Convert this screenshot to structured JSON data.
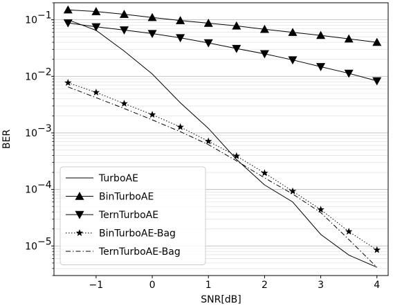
{
  "chart_data": {
    "type": "line",
    "xlabel": "SNR[dB]",
    "ylabel": "BER",
    "xlim": [
      -1.75,
      4.2
    ],
    "ylim": [
      3e-06,
      0.2
    ],
    "yscale": "log",
    "grid": "horizontal (major and minor)",
    "legend_position": "lower-left",
    "x_ticks": [
      -1,
      0,
      1,
      2,
      3,
      4
    ],
    "x_tick_labels": [
      "−1",
      "0",
      "1",
      "2",
      "3",
      "4"
    ],
    "y_ticks": [
      1e-05,
      0.0001,
      0.001,
      0.01,
      0.1
    ],
    "y_tick_labels": [
      {
        "base": "10",
        "exp": "−5"
      },
      {
        "base": "10",
        "exp": "−4"
      },
      {
        "base": "10",
        "exp": "−3"
      },
      {
        "base": "10",
        "exp": "−2"
      },
      {
        "base": "10",
        "exp": "−1"
      }
    ],
    "x": [
      -1.5,
      -1.0,
      -0.5,
      0.0,
      0.5,
      1.0,
      1.5,
      2.0,
      2.5,
      3.0,
      3.5,
      4.0
    ],
    "series": [
      {
        "name": "TurboAE",
        "style": "solid",
        "marker": "none",
        "values": [
          0.1,
          0.065,
          0.028,
          0.011,
          0.0034,
          0.0012,
          0.00034,
          0.00012,
          6e-05,
          1.6e-05,
          6.9e-06,
          4.2e-06
        ]
      },
      {
        "name": "BinTurboAE",
        "style": "solid",
        "marker": "triangle-up",
        "values": [
          0.15,
          0.14,
          0.125,
          0.11,
          0.097,
          0.087,
          0.078,
          0.068,
          0.06,
          0.053,
          0.046,
          0.04
        ]
      },
      {
        "name": "TernTurboAE",
        "style": "solid",
        "marker": "triangle-down",
        "values": [
          0.088,
          0.075,
          0.066,
          0.057,
          0.048,
          0.039,
          0.031,
          0.025,
          0.0195,
          0.0148,
          0.0113,
          0.0083
        ]
      },
      {
        "name": "BinTurboAE-Bag",
        "style": "dotted",
        "marker": "star",
        "values": [
          0.0077,
          0.0052,
          0.0033,
          0.0021,
          0.00127,
          0.00071,
          0.00039,
          0.000195,
          9.3e-05,
          4.4e-05,
          1.8e-05,
          8.5e-06
        ]
      },
      {
        "name": "TernTurboAE-Bag",
        "style": "dashdot",
        "marker": "none",
        "values": [
          0.0065,
          0.0042,
          0.0027,
          0.0017,
          0.00105,
          0.00062,
          0.00032,
          0.00016,
          8.3e-05,
          3.9e-05,
          1.3e-05,
          4.2e-06
        ]
      }
    ]
  }
}
